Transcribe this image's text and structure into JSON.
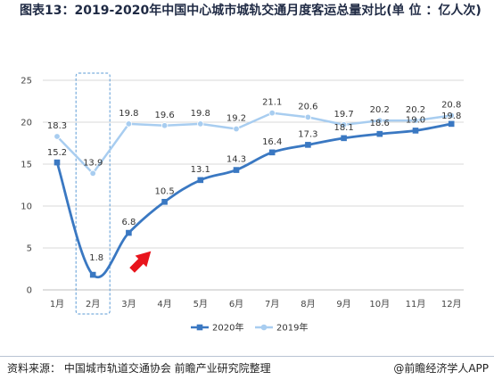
{
  "title": "图表13：2019-2020年中国中心城市城轨交通月度客运总量对比(单 位 ：亿人次)",
  "source": "资料来源： 中国城市轨道交通协会 前瞻产业研究院整理",
  "credit": "@前瞻经济学人APP",
  "colors": {
    "series2020": "#3a78c2",
    "series2019": "#a8cdf0",
    "highlight_box": "#5b9bd5",
    "arrow": "#e8141c",
    "grid": "#d9d9d9"
  },
  "chart_data": {
    "type": "line",
    "categories": [
      "1月",
      "2月",
      "3月",
      "4月",
      "5月",
      "6月",
      "7月",
      "8月",
      "9月",
      "10月",
      "11月",
      "12月"
    ],
    "series": [
      {
        "name": "2020年",
        "values": [
          15.2,
          1.8,
          6.8,
          10.5,
          13.1,
          14.3,
          16.4,
          17.3,
          18.1,
          18.6,
          19.0,
          19.8
        ],
        "labels": [
          "15.2",
          "1.8",
          "6.8",
          "10.5",
          "13.1",
          "14.3",
          "16.4",
          "17.3",
          "18.1",
          "18.6",
          "19.0",
          "19.8"
        ]
      },
      {
        "name": "2019年",
        "values": [
          18.3,
          13.9,
          19.8,
          19.6,
          19.8,
          19.2,
          21.1,
          20.6,
          19.7,
          20.2,
          20.2,
          20.8
        ],
        "labels": [
          "18.3",
          "13.9",
          "19.8",
          "19.6",
          "19.8",
          "19.2",
          "21.1",
          "20.6",
          "19.7",
          "20.2",
          "20.2",
          "20.8"
        ]
      }
    ],
    "yticks": [
      "0",
      "5",
      "10",
      "15",
      "20",
      "25"
    ],
    "ylim": [
      0,
      25
    ],
    "grid": true,
    "legend_position": "bottom",
    "highlighted_category": "2月"
  }
}
